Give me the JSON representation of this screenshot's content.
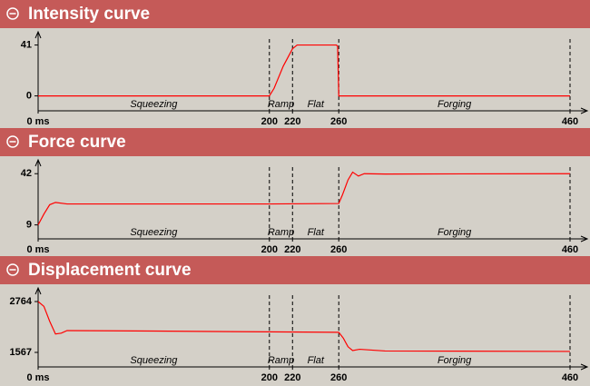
{
  "chart_data": [
    {
      "type": "line",
      "title": "Intensity curve",
      "color": "#ff0000",
      "x": [
        0,
        200,
        204,
        212,
        220,
        224,
        240,
        258,
        259,
        260,
        460
      ],
      "values": [
        0,
        0,
        6,
        24,
        38,
        41,
        41,
        41,
        40,
        0,
        0
      ],
      "xlim": [
        0,
        460
      ],
      "xticks": [
        {
          "value": 0,
          "label": "0 ms"
        },
        200,
        220,
        260,
        460
      ],
      "ylim": [
        -12,
        48
      ],
      "yticks": [
        0,
        41
      ],
      "phase_labels": [
        "Squeezing",
        "Ramp",
        "Flat",
        "Forging"
      ]
    },
    {
      "type": "line",
      "title": "Force curve",
      "color": "#ff0000",
      "x": [
        0,
        5,
        10,
        15,
        25,
        100,
        200,
        260,
        263,
        268,
        272,
        277,
        282,
        300,
        460
      ],
      "values": [
        9,
        16,
        22,
        23.5,
        22.5,
        22.5,
        22.5,
        22.8,
        28,
        38,
        43,
        40.5,
        42,
        41.8,
        42
      ],
      "xlim": [
        0,
        460
      ],
      "xticks": [
        {
          "value": 0,
          "label": "0 ms"
        },
        200,
        220,
        260,
        460
      ],
      "ylim": [
        0,
        48
      ],
      "yticks": [
        9,
        42
      ],
      "phase_labels": [
        "Squeezing",
        "Ramp",
        "Flat",
        "Forging"
      ]
    },
    {
      "type": "line",
      "title": "Displacement curve",
      "color": "#ff0000",
      "x": [
        0,
        5,
        10,
        15,
        20,
        25,
        100,
        200,
        260,
        264,
        268,
        272,
        278,
        300,
        460
      ],
      "values": [
        2764,
        2650,
        2300,
        2000,
        2020,
        2080,
        2070,
        2050,
        2040,
        1900,
        1700,
        1610,
        1640,
        1600,
        1590
      ],
      "xlim": [
        0,
        460
      ],
      "xticks": [
        {
          "value": 0,
          "label": "0 ms"
        },
        200,
        220,
        260,
        460
      ],
      "ylim": [
        1225,
        2978
      ],
      "yticks": [
        1567,
        2764
      ],
      "phase_labels": [
        "Squeezing",
        "Ramp",
        "Flat",
        "Forging"
      ]
    }
  ]
}
